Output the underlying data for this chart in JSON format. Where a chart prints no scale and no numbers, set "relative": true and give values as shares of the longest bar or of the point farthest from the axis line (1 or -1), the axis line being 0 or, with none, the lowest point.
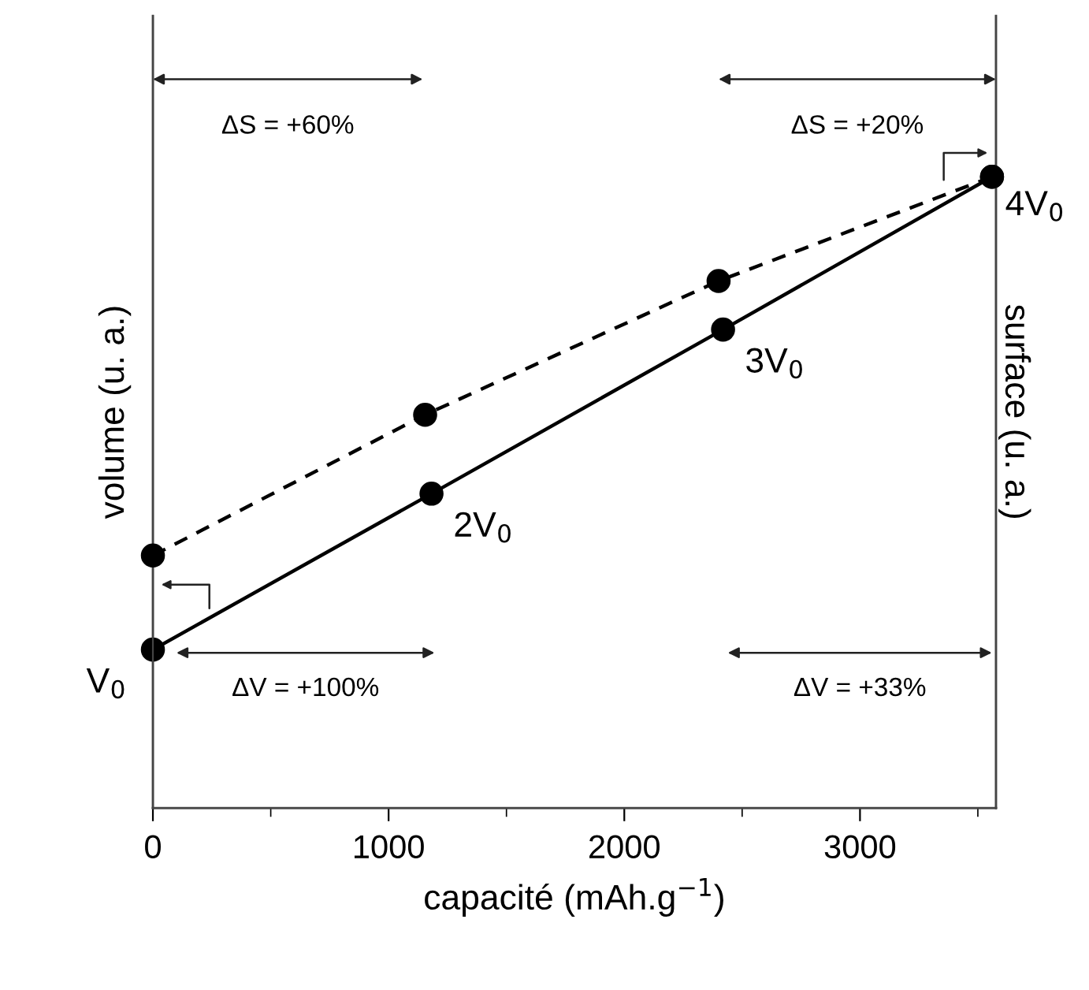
{
  "chart_data": {
    "type": "line",
    "relative": true,
    "marker": "circle",
    "xlabel": "capacité (mAh.g$^{−1}$)",
    "ylabel": "volume (u. a.)",
    "y2label": "surface (u. a.)",
    "xlim": [
      0,
      3577
    ],
    "xticks": [
      0,
      1000,
      2000,
      3000
    ],
    "series": [
      {
        "color": "#000000",
        "line_style": "solid",
        "x": [
          0,
          1182,
          2419,
          3560
        ],
        "values": [
          0.251,
          0.498,
          0.758,
          1
        ]
      },
      {
        "color": "#000000",
        "line_style": "dashed",
        "axis": "y2",
        "x": [
          0,
          1155,
          2400,
          3560
        ],
        "values": [
          0.4,
          0.623,
          0.835,
          1
        ]
      }
    ],
    "annotations": [
      {
        "text": "V$_{0}$",
        "x": 0,
        "y": 0.251
      },
      {
        "text": "2V$_{0}$",
        "x": 1182,
        "y": 0.498
      },
      {
        "text": "3V$_{0}$",
        "x": 2419,
        "y": 0.758
      },
      {
        "text": "4V$_{0}$",
        "x": 3560,
        "y": 1
      },
      "ΔS = +60%",
      "ΔS = +20%",
      "ΔV = +100%",
      "ΔV = +33%"
    ]
  }
}
